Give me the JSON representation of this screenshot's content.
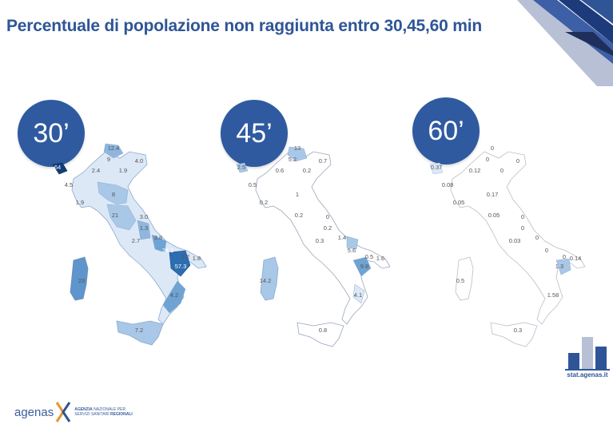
{
  "title": "Percentuale di popolazione non raggiunta entro 30,45,60 min",
  "badges": {
    "b30": "30’",
    "b45": "45’",
    "b60": "60’"
  },
  "colors": {
    "title": "#2f5597",
    "badge": "#2f5aa0",
    "light": "#dce8f6",
    "mid": "#a9c8e8",
    "mid2": "#6fa3d3",
    "dark": "#2e6db0",
    "darkest": "#123e7a"
  },
  "maps": {
    "m30": {
      "labels": [
        {
          "id": "vda",
          "text": "64"
        },
        {
          "id": "tn",
          "text": "9"
        },
        {
          "id": "bz",
          "text": "12.4"
        },
        {
          "id": "lomb",
          "text": "2.4"
        },
        {
          "id": "ven",
          "text": "1.9"
        },
        {
          "id": "fvg",
          "text": "4.0"
        },
        {
          "id": "pie",
          "text": "4.5"
        },
        {
          "id": "lig",
          "text": "1.9"
        },
        {
          "id": "emr",
          "text": "8"
        },
        {
          "id": "tos",
          "text": "21"
        },
        {
          "id": "umb",
          "text": "3.0"
        },
        {
          "id": "mar",
          "text": "1.3"
        },
        {
          "id": "laz",
          "text": "2.7"
        },
        {
          "id": "abr",
          "text": "3.8"
        },
        {
          "id": "mol",
          "text": "24.1"
        },
        {
          "id": "cam",
          "text": "3.2"
        },
        {
          "id": "pug",
          "text": "1.8"
        },
        {
          "id": "bas",
          "text": "57.3"
        },
        {
          "id": "cal",
          "text": "4.2"
        },
        {
          "id": "sic",
          "text": "7.2"
        },
        {
          "id": "sar",
          "text": "23"
        }
      ]
    },
    "m45": {
      "labels": [
        {
          "id": "vda",
          "text": "2.5"
        },
        {
          "id": "bz",
          "text": "13"
        },
        {
          "id": "tn",
          "text": "5.2"
        },
        {
          "id": "lomb",
          "text": "0.6"
        },
        {
          "id": "ven",
          "text": "0.2"
        },
        {
          "id": "fvg",
          "text": "0.7"
        },
        {
          "id": "pie",
          "text": "0.5"
        },
        {
          "id": "lig",
          "text": "0.2"
        },
        {
          "id": "emr",
          "text": "1"
        },
        {
          "id": "tos",
          "text": "0.2"
        },
        {
          "id": "umb",
          "text": "0"
        },
        {
          "id": "mar",
          "text": "0.2"
        },
        {
          "id": "laz",
          "text": "0.3"
        },
        {
          "id": "abr",
          "text": "1.4"
        },
        {
          "id": "mol",
          "text": "5.6"
        },
        {
          "id": "cam",
          "text": "0.5"
        },
        {
          "id": "pug",
          "text": "1.6"
        },
        {
          "id": "bas",
          "text": "9.8"
        },
        {
          "id": "cal",
          "text": "4.1"
        },
        {
          "id": "sic",
          "text": "0.8"
        },
        {
          "id": "sar",
          "text": "14.2"
        }
      ]
    },
    "m60": {
      "labels": [
        {
          "id": "vda",
          "text": "0.37"
        },
        {
          "id": "bz",
          "text": "0"
        },
        {
          "id": "tn",
          "text": "0"
        },
        {
          "id": "lomb",
          "text": "0.12"
        },
        {
          "id": "ven",
          "text": "0"
        },
        {
          "id": "fvg",
          "text": "0"
        },
        {
          "id": "pie",
          "text": "0.08"
        },
        {
          "id": "lig",
          "text": "0.05"
        },
        {
          "id": "emr",
          "text": "0.17"
        },
        {
          "id": "tos",
          "text": "0.05"
        },
        {
          "id": "umb",
          "text": "0"
        },
        {
          "id": "mar",
          "text": "0"
        },
        {
          "id": "laz",
          "text": "0.03"
        },
        {
          "id": "abr",
          "text": "0"
        },
        {
          "id": "mol",
          "text": "0"
        },
        {
          "id": "cam",
          "text": "0"
        },
        {
          "id": "pug",
          "text": "0.14"
        },
        {
          "id": "bas",
          "text": "1.3"
        },
        {
          "id": "cal",
          "text": "1.58"
        },
        {
          "id": "sic",
          "text": "0.3"
        },
        {
          "id": "sar",
          "text": "0.5"
        }
      ]
    }
  },
  "stat": {
    "label": "stat.agenas.it"
  },
  "logo": {
    "word": "agenas",
    "line1_bold": "AGENZIA",
    "line1_rest": " NAZIONALE PER",
    "line2_rest": "SERVIZI SANITARI ",
    "line2_bold": "REGIONALI"
  }
}
